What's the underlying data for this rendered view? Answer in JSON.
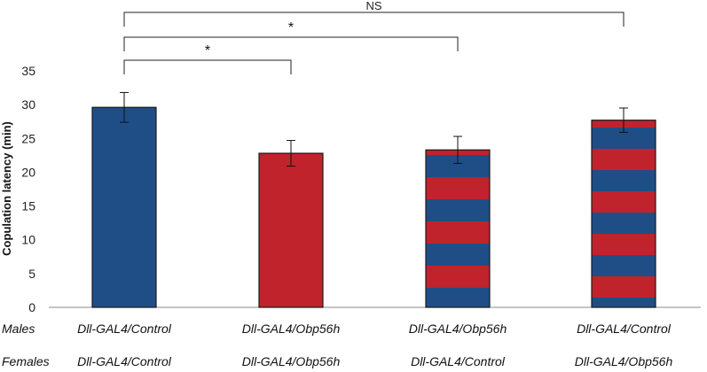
{
  "chart_data": {
    "type": "bar",
    "ylabel": "Copulation latency (min)",
    "ylim": [
      0,
      35
    ],
    "yticks": [
      0,
      5,
      10,
      15,
      20,
      25,
      30,
      35
    ],
    "rows": {
      "males_label": "Males",
      "females_label": "Females"
    },
    "categories": [
      {
        "males": "Dll-GAL4/Control",
        "females": "Dll-GAL4/Control"
      },
      {
        "males": "Dll-GAL4/Obp56h",
        "females": "Dll-GAL4/Obp56h"
      },
      {
        "males": "Dll-GAL4/Obp56h",
        "females": "Dll-GAL4/Control"
      },
      {
        "males": "Dll-GAL4/Control",
        "females": "Dll-GAL4/Obp56h"
      }
    ],
    "values": [
      29.6,
      22.8,
      23.3,
      27.7
    ],
    "errors": [
      2.2,
      1.9,
      2.0,
      1.8
    ],
    "fills": [
      "blue",
      "red",
      "red-blue-stripes",
      "blue-red-stripes"
    ],
    "significance": [
      {
        "from": 0,
        "to": 1,
        "label": "*"
      },
      {
        "from": 0,
        "to": 2,
        "label": "*"
      },
      {
        "from": 0,
        "to": 3,
        "label": "NS"
      }
    ],
    "colors": {
      "blue": "#1f4e87",
      "red": "#c0232c",
      "axis": "#888888",
      "outline": "#1a1a1a"
    }
  }
}
